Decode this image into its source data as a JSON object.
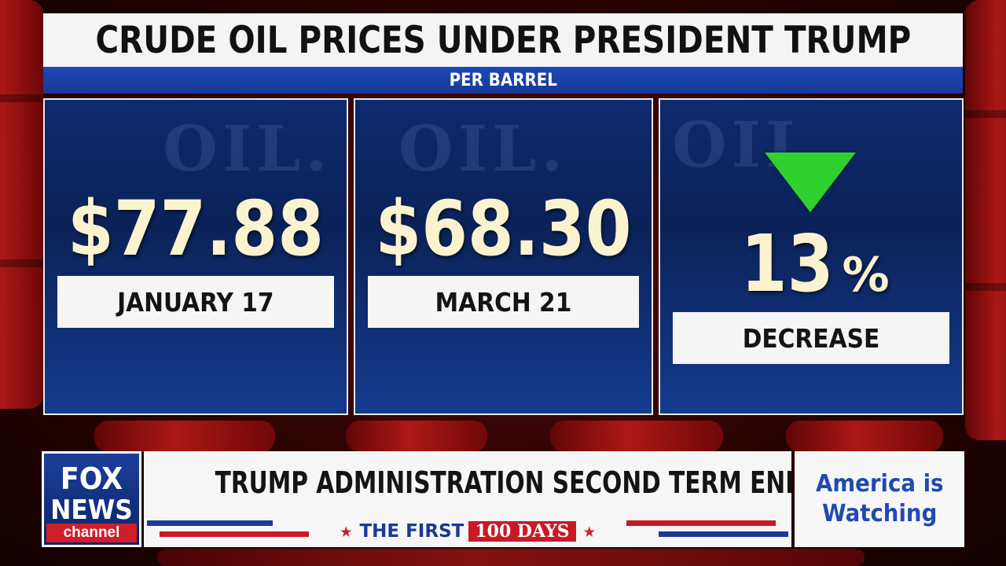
{
  "title": "CRUDE OIL PRICES UNDER PRESIDENT TRUMP",
  "subtitle": "PER BARREL",
  "panels": [
    {
      "value": "$77.88",
      "label": "JANUARY 17"
    },
    {
      "value": "$68.30",
      "label": "MARCH 21"
    },
    {
      "value": "13",
      "value_symbol": "%",
      "label": "DECREASE",
      "icon": "down-triangle-icon"
    }
  ],
  "background_watermark": "OIL.",
  "lower_third": {
    "network": {
      "line1": "FOX",
      "line2": "NEWS",
      "line3": "channel"
    },
    "headline": "TRUMP ADMINISTRATION SECOND TERM ENERGY AGENDA",
    "tagline_prefix": "THE FIRST",
    "tagline_badge": "100 DAYS",
    "side_text": "America is\nWatching"
  },
  "colors": {
    "accent_blue": "#1a3a96",
    "accent_red": "#c81a26",
    "down_green": "#2fd12f",
    "value_cream": "#fbf3cf"
  }
}
